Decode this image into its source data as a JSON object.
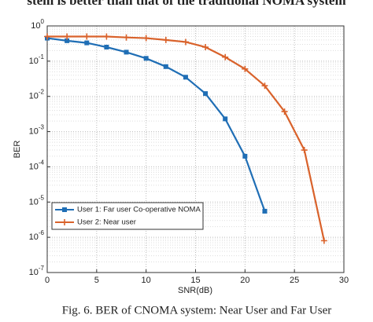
{
  "caption_top": "stem is better than that of the traditional NOMA system",
  "caption": "Fig. 6. BER of CNOMA system: Near User and Far User",
  "chart_data": {
    "type": "line",
    "xlabel": "SNR(dB)",
    "ylabel": "BER",
    "xlim": [
      0,
      30
    ],
    "xticks": [
      0,
      5,
      10,
      15,
      20,
      25,
      30
    ],
    "ylim": [
      1e-07,
      1
    ],
    "log_y": true,
    "grid": true,
    "legend": "lower left",
    "yticks": [
      {
        "value": 1,
        "label": "10^0"
      },
      {
        "value": 0.1,
        "label": "10^-1"
      },
      {
        "value": 0.01,
        "label": "10^-2"
      },
      {
        "value": 0.001,
        "label": "10^-3"
      },
      {
        "value": 0.0001,
        "label": "10^-4"
      },
      {
        "value": 1e-05,
        "label": "10^-5"
      },
      {
        "value": 1e-06,
        "label": "10^-6"
      },
      {
        "value": 1e-07,
        "label": "10^-7"
      }
    ],
    "series": [
      {
        "name": "User 1: Far user Co-operative NOMA",
        "color": "#1f6eb5",
        "marker": "square",
        "x": [
          0,
          2,
          4,
          6,
          8,
          10,
          12,
          14,
          16,
          18,
          20,
          22
        ],
        "values": [
          0.45,
          0.38,
          0.33,
          0.25,
          0.18,
          0.12,
          0.07,
          0.035,
          0.012,
          0.0023,
          0.0002,
          5.5e-06
        ]
      },
      {
        "name": "User 2: Near user",
        "color": "#d9622b",
        "marker": "plus",
        "x": [
          0,
          2,
          4,
          6,
          8,
          10,
          12,
          14,
          16,
          18,
          20,
          22,
          24,
          26,
          28
        ],
        "values": [
          0.5,
          0.5,
          0.5,
          0.5,
          0.47,
          0.45,
          0.4,
          0.35,
          0.25,
          0.13,
          0.06,
          0.02,
          0.0037,
          0.0003,
          8e-07
        ]
      }
    ]
  }
}
